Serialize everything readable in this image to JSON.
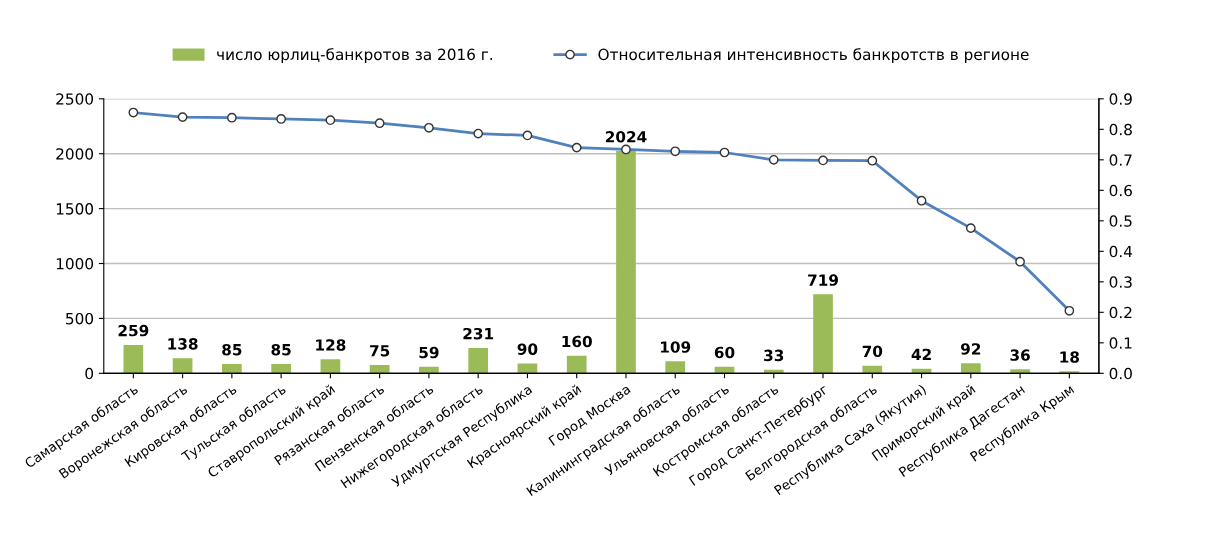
{
  "chart_data": {
    "type": "bar",
    "categories": [
      "Самарская область",
      "Воронежская область",
      "Кировская область",
      "Тульская область",
      "Ставропольский край",
      "Рязанская область",
      "Пензенская область",
      "Нижегородская область",
      "Удмуртская Республика",
      "Красноярский край",
      "Город Москва",
      "Калининградская область",
      "Ульяновская область",
      "Костромская область",
      "Город Санкт-Петербург",
      "Белгородская область",
      "Республика Саха (Якутия)",
      "Приморский край",
      "Республика Дагестан",
      "Республика Крым"
    ],
    "series": [
      {
        "name": "число юрлиц-банкротов за 2016 г.",
        "color": "#9bbb59",
        "data_labels": true,
        "values": [
          259,
          138,
          85,
          85,
          128,
          75,
          59,
          231,
          90,
          160,
          2024,
          109,
          60,
          33,
          719,
          70,
          42,
          92,
          36,
          18
        ]
      },
      {
        "name": "Относительная интенсивность банкротств в регионе",
        "type": "line",
        "axis": "y2",
        "color": "#4f81bd",
        "marker": "circle",
        "values": [
          0.855,
          0.84,
          0.838,
          0.834,
          0.83,
          0.82,
          0.805,
          0.786,
          0.78,
          0.74,
          0.734,
          0.728,
          0.724,
          0.7,
          0.698,
          0.697,
          0.566,
          0.476,
          0.366,
          0.205
        ]
      }
    ],
    "ylim": [
      0,
      2500
    ],
    "yticks": [
      0,
      500,
      1000,
      1500,
      2000,
      2500
    ],
    "y2lim": [
      0,
      0.9
    ],
    "y2ticks": [
      {
        "value": 0,
        "label": "0.0"
      },
      0.1,
      0.2,
      0.3,
      0.4,
      0.5,
      0.6,
      0.7,
      0.8,
      0.9
    ],
    "grid": "y",
    "legend": "top"
  }
}
